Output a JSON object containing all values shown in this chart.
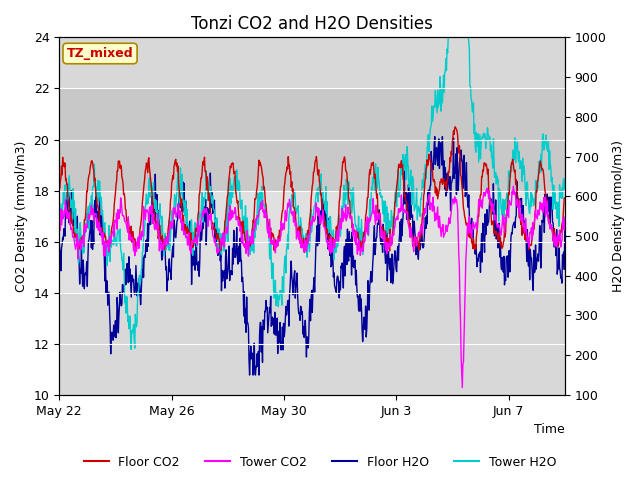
{
  "title": "Tonzi CO2 and H2O Densities",
  "xlabel": "Time",
  "ylabel_left": "CO2 Density (mmol/m3)",
  "ylabel_right": "H2O Density (mmol/m3)",
  "ylim_left": [
    10,
    24
  ],
  "ylim_right": [
    100,
    1000
  ],
  "yticks_left": [
    10,
    12,
    14,
    16,
    18,
    20,
    22,
    24
  ],
  "yticks_right": [
    100,
    200,
    300,
    400,
    500,
    600,
    700,
    800,
    900,
    1000
  ],
  "xtick_labels": [
    "May 22",
    "May 26",
    "May 30",
    "Jun 3",
    "Jun 7"
  ],
  "colors": {
    "floor_co2": "#cc0000",
    "tower_co2": "#ff00ff",
    "floor_h2o": "#000099",
    "tower_h2o": "#00cccc"
  },
  "legend_labels": [
    "Floor CO2",
    "Tower CO2",
    "Floor H2O",
    "Tower H2O"
  ],
  "annotation_text": "TZ_mixed",
  "annotation_color": "#cc0000",
  "annotation_bg": "#ffffcc",
  "annotation_border": "#aa8800",
  "background_color": "#ffffff",
  "plot_bg_color": "#d8d8d8",
  "band1_color": "#c8c8c8",
  "band2_color": "#e0e0e0",
  "grid_color": "#ffffff",
  "title_fontsize": 12,
  "axis_label_fontsize": 9,
  "tick_fontsize": 9,
  "legend_fontsize": 9
}
